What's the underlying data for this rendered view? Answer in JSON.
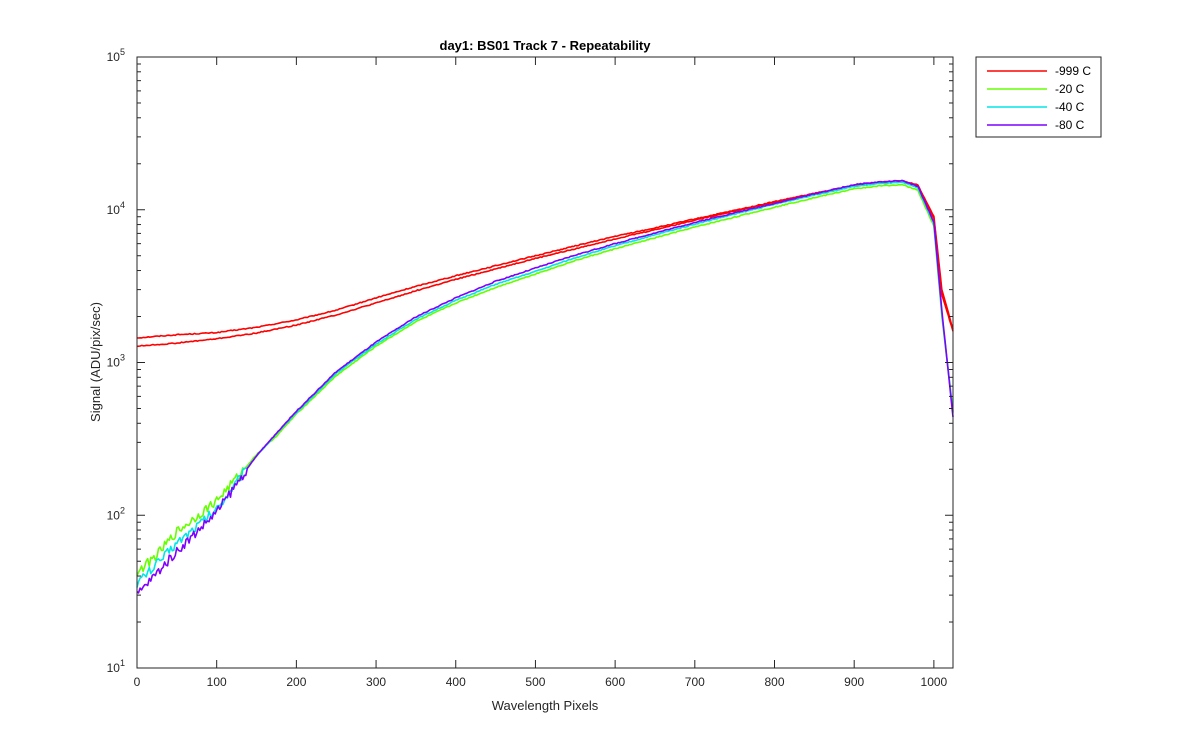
{
  "chart_data": {
    "type": "line",
    "title": "day1: BS01  Track 7  - Repeatability",
    "xlabel": "Wavelength Pixels",
    "ylabel": "Signal (ADU/pix/sec)",
    "xlim": [
      0,
      1024
    ],
    "ylim": [
      10,
      100000
    ],
    "yscale": "log",
    "xticks": [
      0,
      100,
      200,
      300,
      400,
      500,
      600,
      700,
      800,
      900,
      1000
    ],
    "yticks": [
      {
        "value": 10,
        "base": "10",
        "exp": "1"
      },
      {
        "value": 100,
        "base": "10",
        "exp": "2"
      },
      {
        "value": 1000,
        "base": "10",
        "exp": "3"
      },
      {
        "value": 10000,
        "base": "10",
        "exp": "4"
      },
      {
        "value": 100000,
        "base": "10",
        "exp": "5"
      }
    ],
    "grid": false,
    "legend_position": "outside-top-right",
    "series": [
      {
        "name": "-999 C",
        "color": "#ff0000",
        "x": [
          0,
          50,
          100,
          150,
          200,
          250,
          300,
          350,
          400,
          450,
          500,
          550,
          600,
          650,
          700,
          750,
          800,
          850,
          900,
          930,
          960,
          980,
          1000,
          1010,
          1024
        ],
        "y": [
          1450,
          1520,
          1570,
          1700,
          1900,
          2200,
          2650,
          3150,
          3700,
          4300,
          5000,
          5800,
          6700,
          7600,
          8700,
          9900,
          11300,
          12800,
          14400,
          15100,
          15500,
          14500,
          9000,
          3000,
          1650
        ]
      },
      {
        "name": "-999 C",
        "color": "#ff0000",
        "x": [
          0,
          50,
          100,
          150,
          200,
          250,
          300,
          350,
          400,
          450,
          500,
          550,
          600,
          650,
          700,
          750,
          800,
          850,
          900,
          930,
          960,
          980,
          1000,
          1010,
          1024
        ],
        "y": [
          1280,
          1340,
          1430,
          1560,
          1760,
          2050,
          2450,
          2950,
          3500,
          4100,
          4800,
          5550,
          6450,
          7400,
          8550,
          9800,
          11200,
          12700,
          14300,
          15000,
          15400,
          14400,
          8800,
          2800,
          1600
        ]
      },
      {
        "name": "-20 C",
        "color": "#66ff00",
        "x": [
          0,
          25,
          50,
          75,
          100,
          125,
          150,
          175,
          200,
          250,
          300,
          350,
          400,
          450,
          500,
          550,
          600,
          650,
          700,
          750,
          800,
          850,
          900,
          930,
          960,
          980,
          1000,
          1010,
          1024
        ],
        "y": [
          42,
          55,
          78,
          98,
          125,
          175,
          250,
          330,
          460,
          820,
          1280,
          1850,
          2450,
          3100,
          3800,
          4650,
          5550,
          6550,
          7700,
          8950,
          10400,
          12000,
          13700,
          14300,
          14600,
          13400,
          7800,
          2000,
          480
        ]
      },
      {
        "name": "-40 C",
        "color": "#00e6e6",
        "x": [
          0,
          25,
          50,
          75,
          100,
          125,
          150,
          175,
          200,
          250,
          300,
          350,
          400,
          450,
          500,
          550,
          600,
          650,
          700,
          750,
          800,
          850,
          900,
          930,
          960,
          980,
          1000,
          1010,
          1024
        ],
        "y": [
          36,
          48,
          66,
          85,
          110,
          165,
          245,
          340,
          470,
          850,
          1320,
          1920,
          2550,
          3250,
          3950,
          4850,
          5800,
          6850,
          8050,
          9350,
          10850,
          12500,
          14200,
          14800,
          15100,
          13900,
          8100,
          2100,
          470
        ]
      },
      {
        "name": "-80 C",
        "color": "#7f00ff",
        "x": [
          0,
          25,
          50,
          75,
          100,
          125,
          150,
          175,
          200,
          250,
          300,
          350,
          400,
          450,
          500,
          550,
          600,
          650,
          700,
          750,
          800,
          850,
          900,
          930,
          960,
          980,
          1000,
          1010,
          1024
        ],
        "y": [
          30,
          42,
          58,
          78,
          105,
          160,
          245,
          345,
          480,
          870,
          1360,
          1990,
          2650,
          3400,
          4150,
          5050,
          6000,
          7050,
          8250,
          9550,
          11000,
          12700,
          14600,
          15200,
          15500,
          14200,
          8300,
          2200,
          440
        ]
      }
    ]
  }
}
